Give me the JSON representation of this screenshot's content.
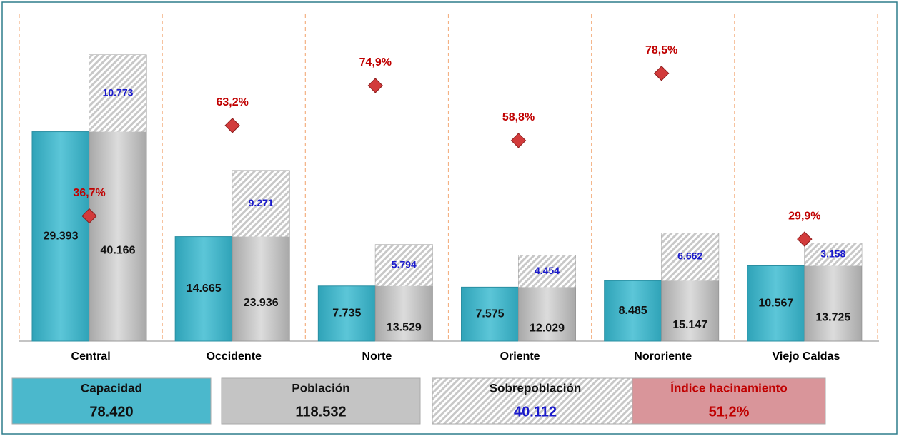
{
  "chart_data": {
    "type": "bar",
    "categories": [
      "Central",
      "Occidente",
      "Norte",
      "Oriente",
      "Nororiente",
      "Viejo Caldas"
    ],
    "series": [
      {
        "name": "Capacidad",
        "color": "#4bb8cc",
        "values": [
          29393,
          14665,
          7735,
          7575,
          8485,
          10567
        ],
        "value_labels": [
          "29.393",
          "14.665",
          "7.735",
          "7.575",
          "8.485",
          "10.567"
        ],
        "total": 78420,
        "total_label": "78.420"
      },
      {
        "name": "Población",
        "color": "#c4c4c4",
        "values": [
          40166,
          23936,
          13529,
          12029,
          15147,
          13725
        ],
        "value_labels": [
          "40.166",
          "23.936",
          "13.529",
          "12.029",
          "15.147",
          "13.725"
        ],
        "total": 118532,
        "total_label": "118.532"
      },
      {
        "name": "Sobrepoblación",
        "color": "#1a1acc",
        "values": [
          10773,
          9271,
          5794,
          4454,
          6662,
          3158
        ],
        "value_labels": [
          "10.773",
          "9.271",
          "5.794",
          "4.454",
          "6.662",
          "3.158"
        ],
        "total": 40112,
        "total_label": "40.112"
      },
      {
        "name": "Índice hacinamiento",
        "color": "#c00000",
        "axis": "y2",
        "values": [
          36.7,
          63.2,
          74.9,
          58.8,
          78.5,
          29.9
        ],
        "value_labels": [
          "36,7%",
          "63,2%",
          "74,9%",
          "58,8%",
          "78,5%",
          "29,9%"
        ],
        "total": 51.2,
        "total_label": "51,2%"
      }
    ]
  }
}
